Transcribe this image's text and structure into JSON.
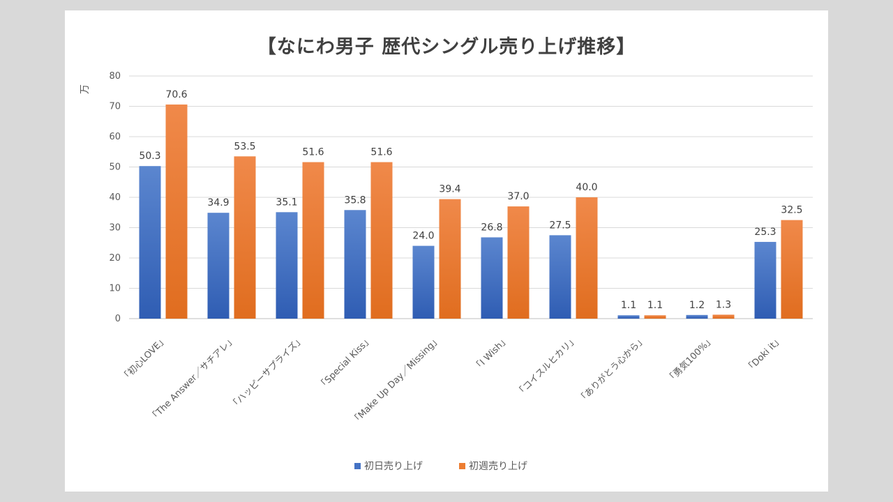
{
  "chart_data": {
    "type": "bar",
    "title": "【なにわ男子 歴代シングル売り上げ推移】",
    "ylabel": "万",
    "xlabel": "",
    "ylim": [
      0,
      80
    ],
    "yticks": [
      0,
      10,
      20,
      30,
      40,
      50,
      60,
      70,
      80
    ],
    "grid": true,
    "legend_position": "bottom",
    "categories": [
      "「初心LOVE」",
      "「The Answer／サチアレ」",
      "「ハッピーサプライズ」",
      "「Special Kiss」",
      "「Make Up Day／Missing」",
      "「I Wish」",
      "「コイスルヒカリ」",
      "「ありがとう心から」",
      "「勇気100%」",
      "「Doki it」"
    ],
    "series": [
      {
        "name": "初日売り上げ",
        "color": "#4472c4",
        "values": [
          50.3,
          34.9,
          35.1,
          35.8,
          24.0,
          26.8,
          27.5,
          1.1,
          1.2,
          25.3
        ],
        "labels": [
          "50.3",
          "34.9",
          "35.1",
          "35.8",
          "24.0",
          "26.8",
          "27.5",
          "1.1",
          "1.2",
          "25.3"
        ]
      },
      {
        "name": "初週売り上げ",
        "color": "#ed7d31",
        "values": [
          70.6,
          53.5,
          51.6,
          51.6,
          39.4,
          37.0,
          40.0,
          1.1,
          1.3,
          32.5
        ],
        "labels": [
          "70.6",
          "53.5",
          "51.6",
          "51.6",
          "39.4",
          "37.0",
          "40.0",
          "1.1",
          "1.3",
          "32.5"
        ]
      }
    ]
  }
}
